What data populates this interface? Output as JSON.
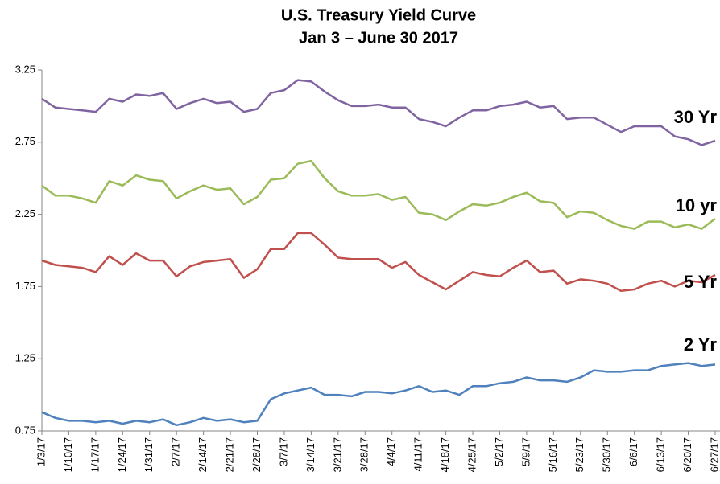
{
  "chart_data": {
    "type": "line",
    "title": "U.S. Treasury Yield Curve",
    "subtitle": "Jan 3 – June 30 2017",
    "categories": [
      "1/3/17",
      null,
      "1/10/17",
      null,
      "1/17/17",
      null,
      "1/24/17",
      null,
      "1/31/17",
      null,
      "2/7/17",
      null,
      "2/14/17",
      null,
      "2/21/17",
      null,
      "2/28/17",
      null,
      "3/7/17",
      null,
      "3/14/17",
      null,
      "3/21/17",
      null,
      "3/28/17",
      null,
      "4/4/17",
      null,
      "4/11/17",
      null,
      "4/18/17",
      null,
      "4/25/17",
      null,
      "5/2/17",
      null,
      "5/9/17",
      null,
      "5/16/17",
      null,
      "5/23/17",
      null,
      "5/30/17",
      null,
      "6/6/17",
      null,
      "6/13/17",
      null,
      "6/20/17",
      null,
      "6/27/17"
    ],
    "series": [
      {
        "name": "30 Yr",
        "color": "#8064a2",
        "values": [
          3.05,
          2.99,
          2.98,
          2.97,
          2.96,
          3.05,
          3.03,
          3.08,
          3.07,
          3.09,
          2.98,
          3.02,
          3.05,
          3.02,
          3.03,
          2.96,
          2.98,
          3.09,
          3.11,
          3.18,
          3.17,
          3.1,
          3.04,
          3.0,
          3.0,
          3.01,
          2.99,
          2.99,
          2.91,
          2.89,
          2.86,
          2.92,
          2.97,
          2.97,
          3.0,
          3.01,
          3.03,
          2.99,
          3.0,
          2.91,
          2.92,
          2.92,
          2.87,
          2.82,
          2.86,
          2.86,
          2.86,
          2.79,
          2.77,
          2.73,
          2.76
        ]
      },
      {
        "name": "10 yr",
        "color": "#9bbb59",
        "values": [
          2.45,
          2.38,
          2.38,
          2.36,
          2.33,
          2.48,
          2.45,
          2.52,
          2.49,
          2.48,
          2.36,
          2.41,
          2.45,
          2.42,
          2.43,
          2.32,
          2.37,
          2.49,
          2.5,
          2.6,
          2.62,
          2.5,
          2.41,
          2.38,
          2.38,
          2.39,
          2.35,
          2.37,
          2.26,
          2.25,
          2.21,
          2.27,
          2.32,
          2.31,
          2.33,
          2.37,
          2.4,
          2.34,
          2.33,
          2.23,
          2.27,
          2.26,
          2.21,
          2.17,
          2.15,
          2.2,
          2.2,
          2.16,
          2.18,
          2.15,
          2.22
        ]
      },
      {
        "name": "5 Yr",
        "color": "#c0504d",
        "values": [
          1.93,
          1.9,
          1.89,
          1.88,
          1.85,
          1.96,
          1.9,
          1.98,
          1.93,
          1.93,
          1.82,
          1.89,
          1.92,
          1.93,
          1.94,
          1.81,
          1.87,
          2.01,
          2.01,
          2.12,
          2.12,
          2.04,
          1.95,
          1.94,
          1.94,
          1.94,
          1.88,
          1.92,
          1.83,
          1.78,
          1.73,
          1.79,
          1.85,
          1.83,
          1.82,
          1.88,
          1.93,
          1.85,
          1.86,
          1.77,
          1.8,
          1.79,
          1.77,
          1.72,
          1.73,
          1.77,
          1.79,
          1.75,
          1.79,
          1.78,
          1.83
        ]
      },
      {
        "name": "2 Yr",
        "color": "#4f81bd",
        "values": [
          0.88,
          0.84,
          0.82,
          0.82,
          0.81,
          0.82,
          0.8,
          0.82,
          0.81,
          0.83,
          0.79,
          0.81,
          0.84,
          0.82,
          0.83,
          0.81,
          0.82,
          0.97,
          1.01,
          1.03,
          1.05,
          1.0,
          1.0,
          0.99,
          1.02,
          1.02,
          1.01,
          1.03,
          1.06,
          1.02,
          1.03,
          1.0,
          1.06,
          1.06,
          1.08,
          1.09,
          1.12,
          1.1,
          1.1,
          1.09,
          1.12,
          1.17,
          1.16,
          1.16,
          1.17,
          1.17,
          1.2,
          1.21,
          1.22,
          1.2,
          1.21
        ]
      }
    ],
    "ylim": [
      0.75,
      3.25
    ],
    "yticks": [
      0.75,
      1.25,
      1.75,
      2.25,
      2.75,
      3.25
    ],
    "grid": false
  }
}
